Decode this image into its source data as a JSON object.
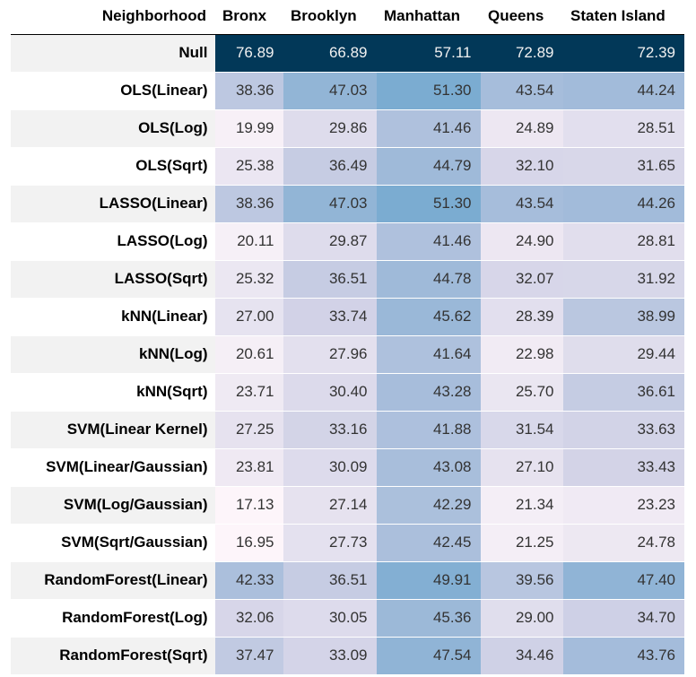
{
  "chart_data": {
    "type": "heatmap",
    "corner_label": "Neighborhood",
    "columns": [
      "Bronx",
      "Brooklyn",
      "Manhattan",
      "Queens",
      "Staten Island"
    ],
    "rows": [
      {
        "label": "Null",
        "values": [
          76.89,
          66.89,
          57.11,
          72.89,
          72.39
        ]
      },
      {
        "label": "OLS(Linear)",
        "values": [
          38.36,
          47.03,
          51.3,
          43.54,
          44.24
        ]
      },
      {
        "label": "OLS(Log)",
        "values": [
          19.99,
          29.86,
          41.46,
          24.89,
          28.51
        ]
      },
      {
        "label": "OLS(Sqrt)",
        "values": [
          25.38,
          36.49,
          44.79,
          32.1,
          31.65
        ]
      },
      {
        "label": "LASSO(Linear)",
        "values": [
          38.36,
          47.03,
          51.3,
          43.54,
          44.26
        ]
      },
      {
        "label": "LASSO(Log)",
        "values": [
          20.11,
          29.87,
          41.46,
          24.9,
          28.81
        ]
      },
      {
        "label": "LASSO(Sqrt)",
        "values": [
          25.32,
          36.51,
          44.78,
          32.07,
          31.92
        ]
      },
      {
        "label": "kNN(Linear)",
        "values": [
          27.0,
          33.74,
          45.62,
          28.39,
          38.99
        ]
      },
      {
        "label": "kNN(Log)",
        "values": [
          20.61,
          27.96,
          41.64,
          22.98,
          29.44
        ]
      },
      {
        "label": "kNN(Sqrt)",
        "values": [
          23.71,
          30.4,
          43.28,
          25.7,
          36.61
        ]
      },
      {
        "label": "SVM(Linear Kernel)",
        "values": [
          27.25,
          33.16,
          41.88,
          31.54,
          33.63
        ]
      },
      {
        "label": "SVM(Linear/Gaussian)",
        "values": [
          23.81,
          30.09,
          43.08,
          27.1,
          33.43
        ]
      },
      {
        "label": "SVM(Log/Gaussian)",
        "values": [
          17.13,
          27.14,
          42.29,
          21.34,
          23.23
        ]
      },
      {
        "label": "SVM(Sqrt/Gaussian)",
        "values": [
          16.95,
          27.73,
          42.45,
          21.25,
          24.78
        ]
      },
      {
        "label": "RandomForest(Linear)",
        "values": [
          42.33,
          36.51,
          49.91,
          39.56,
          47.4
        ]
      },
      {
        "label": "RandomForest(Log)",
        "values": [
          32.06,
          30.05,
          45.36,
          29.0,
          34.7
        ]
      },
      {
        "label": "RandomForest(Sqrt)",
        "values": [
          37.47,
          33.09,
          47.54,
          34.46,
          43.76
        ]
      }
    ],
    "colormap": "PuBu",
    "colors": {
      "low": "#fff7fb",
      "mid": "#a6bddb",
      "high": "#3690c0",
      "max": "#023858"
    },
    "grid": false,
    "legend": "none"
  }
}
